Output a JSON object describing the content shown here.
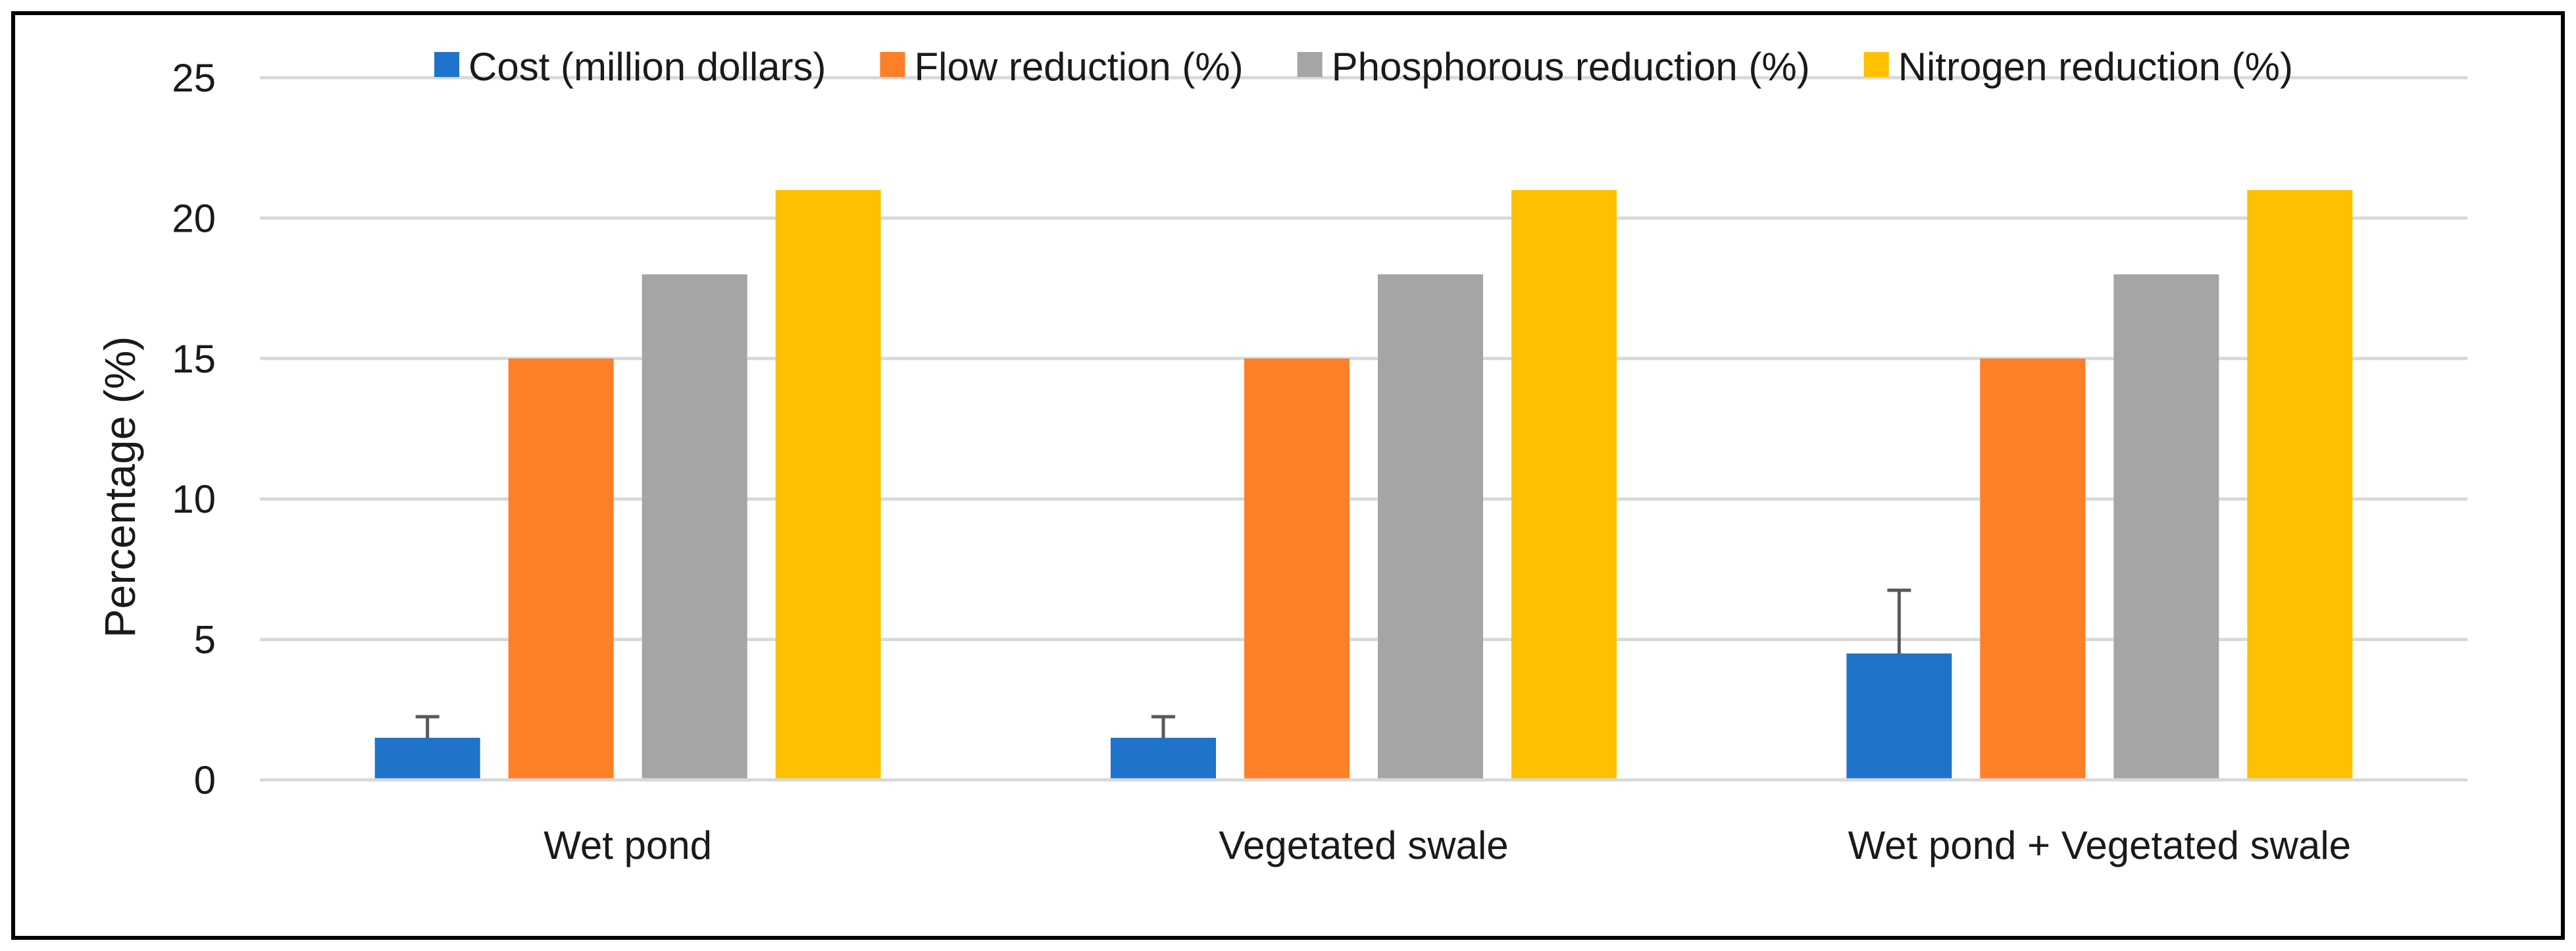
{
  "chart_data": {
    "type": "bar",
    "title": "",
    "xlabel": "",
    "ylabel": "Percentage (%)",
    "ylim": [
      0,
      25
    ],
    "yticks": [
      0,
      5,
      10,
      15,
      20,
      25
    ],
    "grid": true,
    "legend_position": "top",
    "categories": [
      "Wet pond",
      "Vegetated swale",
      "Wet pond + Vegetated swale"
    ],
    "series": [
      {
        "name": "Cost (million dollars)",
        "color": "#1f73c9",
        "values": [
          1.5,
          1.5,
          4.5
        ],
        "error_plus": [
          0.75,
          0.75,
          2.25
        ]
      },
      {
        "name": "Flow reduction (%)",
        "color": "#fd7f27",
        "values": [
          15,
          15,
          15
        ]
      },
      {
        "name": "Phosphorous reduction (%)",
        "color": "#a5a5a5",
        "values": [
          18,
          18,
          18
        ]
      },
      {
        "name": "Nitrogen reduction (%)",
        "color": "#ffc000",
        "values": [
          21,
          21,
          21
        ]
      }
    ]
  }
}
